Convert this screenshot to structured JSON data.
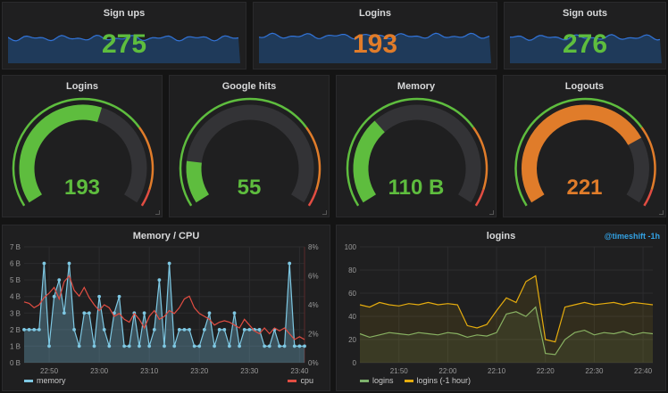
{
  "stats": [
    {
      "title": "Sign ups",
      "value": "275",
      "color": "#5ebd3e"
    },
    {
      "title": "Logins",
      "value": "193",
      "color": "#e07c2a"
    },
    {
      "title": "Sign outs",
      "value": "276",
      "color": "#5ebd3e"
    }
  ],
  "gauges": [
    {
      "title": "Logins",
      "value": "193",
      "fraction": 0.57,
      "color": "#5ebd3e"
    },
    {
      "title": "Google hits",
      "value": "55",
      "fraction": 0.16,
      "color": "#5ebd3e"
    },
    {
      "title": "Memory",
      "value": "110 B",
      "fraction": 0.33,
      "color": "#5ebd3e"
    },
    {
      "title": "Logouts",
      "value": "221",
      "fraction": 0.75,
      "color": "#e07c2a"
    }
  ],
  "colors": {
    "green": "#5ebd3e",
    "orange": "#e07c2a",
    "red": "#e24d42",
    "blue_line": "#7ec8e3",
    "accent": "#33a2e5"
  },
  "chart_data": [
    {
      "type": "line",
      "title": "Memory / CPU",
      "x": [
        "22:45",
        "22:46",
        "22:47",
        "22:48",
        "22:49",
        "22:50",
        "22:51",
        "22:52",
        "22:53",
        "22:54",
        "22:55",
        "22:56",
        "22:57",
        "22:58",
        "22:59",
        "23:00",
        "23:01",
        "23:02",
        "23:03",
        "23:04",
        "23:05",
        "23:06",
        "23:07",
        "23:08",
        "23:09",
        "23:10",
        "23:11",
        "23:12",
        "23:13",
        "23:14",
        "23:15",
        "23:16",
        "23:17",
        "23:18",
        "23:19",
        "23:20",
        "23:21",
        "23:22",
        "23:23",
        "23:24",
        "23:25",
        "23:26",
        "23:27",
        "23:28",
        "23:29",
        "23:30",
        "23:31",
        "23:32",
        "23:33",
        "23:34",
        "23:35",
        "23:36",
        "23:37",
        "23:38",
        "23:39",
        "23:40",
        "23:41"
      ],
      "xticks": [
        "22:50",
        "23:00",
        "23:10",
        "23:20",
        "23:30",
        "23:40"
      ],
      "yticks_left": [
        "0 B",
        "1 B",
        "2 B",
        "3 B",
        "4 B",
        "5 B",
        "6 B",
        "7 B"
      ],
      "yticks_right": [
        "0%",
        "2%",
        "4%",
        "6%",
        "8%"
      ],
      "ylim_left": [
        0,
        7
      ],
      "ylim_right": [
        0,
        8
      ],
      "grid": true,
      "legend_position": "bottom-left",
      "series": [
        {
          "name": "memory",
          "axis": "left",
          "color": "#7ec8e3",
          "values": [
            2,
            2,
            2,
            2,
            6,
            1,
            4,
            5,
            3,
            6,
            2,
            1,
            3,
            3,
            1,
            4,
            2,
            1,
            3,
            4,
            1,
            1,
            3,
            1,
            3,
            1,
            2,
            5,
            1,
            6,
            1,
            2,
            2,
            2,
            1,
            1,
            2,
            3,
            1,
            2,
            2,
            1,
            3,
            1,
            2,
            2,
            2,
            2,
            1,
            1,
            2,
            1,
            1,
            6,
            1,
            1,
            1
          ]
        },
        {
          "name": "cpu",
          "axis": "right",
          "color": "#e24d42",
          "values": [
            4.2,
            4.1,
            3.8,
            4.0,
            4.5,
            4.8,
            5.2,
            4.4,
            5.6,
            6.0,
            5.0,
            4.6,
            5.2,
            4.5,
            4.0,
            3.6,
            4.0,
            3.8,
            3.2,
            3.4,
            3.0,
            2.8,
            3.4,
            3.0,
            2.4,
            3.2,
            3.6,
            3.0,
            3.2,
            3.6,
            3.4,
            3.8,
            4.4,
            4.6,
            3.8,
            3.4,
            3.2,
            3.0,
            2.6,
            2.8,
            2.9,
            2.8,
            2.6,
            2.4,
            3.0,
            2.6,
            2.2,
            2.0,
            2.4,
            2.0,
            2.4,
            2.2,
            2.4,
            2.0,
            1.6,
            1.8,
            1.6
          ]
        }
      ]
    },
    {
      "type": "line",
      "title": "logins",
      "annotation": "@timeshift -1h",
      "x": [
        "21:42",
        "21:44",
        "21:46",
        "21:48",
        "21:50",
        "21:52",
        "21:54",
        "21:56",
        "21:58",
        "22:00",
        "22:02",
        "22:04",
        "22:06",
        "22:08",
        "22:10",
        "22:12",
        "22:14",
        "22:16",
        "22:18",
        "22:20",
        "22:22",
        "22:24",
        "22:26",
        "22:28",
        "22:30",
        "22:32",
        "22:34",
        "22:36",
        "22:38",
        "22:40",
        "22:42"
      ],
      "xticks": [
        "21:50",
        "22:00",
        "22:10",
        "22:20",
        "22:30",
        "22:40"
      ],
      "yticks": [
        "0",
        "20",
        "40",
        "60",
        "80",
        "100"
      ],
      "ylim": [
        0,
        100
      ],
      "grid": true,
      "legend_position": "bottom-left",
      "series": [
        {
          "name": "logins",
          "color": "#7eb26d",
          "values": [
            25,
            22,
            24,
            26,
            25,
            24,
            26,
            25,
            24,
            26,
            25,
            22,
            24,
            23,
            26,
            42,
            44,
            40,
            48,
            8,
            7,
            20,
            26,
            28,
            24,
            26,
            25,
            27,
            24,
            26,
            25
          ]
        },
        {
          "name": "logins (-1 hour)",
          "color": "#e5ac0e",
          "values": [
            50,
            48,
            52,
            50,
            49,
            51,
            50,
            52,
            50,
            51,
            50,
            32,
            30,
            33,
            45,
            56,
            52,
            70,
            75,
            20,
            18,
            48,
            50,
            52,
            50,
            51,
            52,
            50,
            52,
            51,
            50
          ]
        }
      ]
    }
  ]
}
